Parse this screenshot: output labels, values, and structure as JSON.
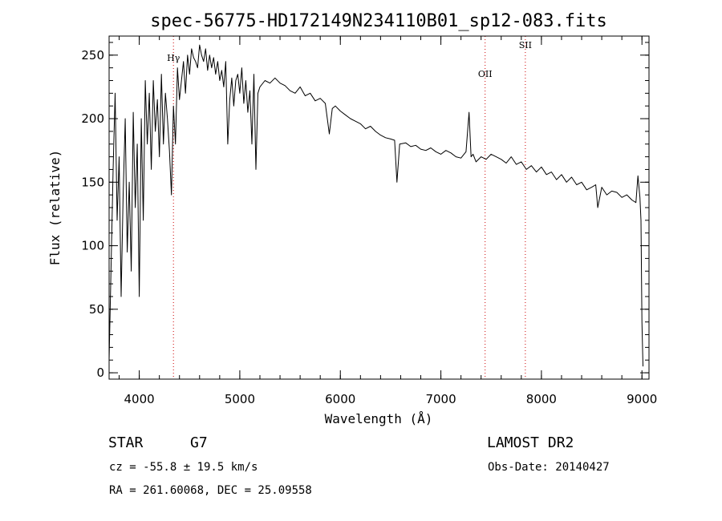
{
  "chart_data": {
    "type": "line",
    "title": "spec-56775-HD172149N234110B01_sp12-083.fits",
    "xlabel": "Wavelength (Å)",
    "ylabel": "Flux (relative)",
    "xlim": [
      3700,
      9070
    ],
    "ylim": [
      -5,
      265
    ],
    "xticks": [
      4000,
      5000,
      6000,
      7000,
      8000,
      9000
    ],
    "yticks": [
      0,
      50,
      100,
      150,
      200,
      250
    ],
    "x_minor_step": 200,
    "y_minor_step": 10,
    "line_color": "#000000",
    "marker_color": "#cc0000",
    "series": [
      {
        "x": [
          3700,
          3720,
          3740,
          3760,
          3780,
          3800,
          3820,
          3840,
          3860,
          3880,
          3900,
          3920,
          3940,
          3960,
          3980,
          4000,
          4020,
          4040,
          4060,
          4080,
          4100,
          4120,
          4140,
          4160,
          4180,
          4200,
          4220,
          4240,
          4260,
          4280,
          4300,
          4320,
          4340,
          4360,
          4380,
          4400,
          4420,
          4440,
          4460,
          4480,
          4500,
          4520,
          4540,
          4560,
          4580,
          4600,
          4620,
          4640,
          4660,
          4680,
          4700,
          4720,
          4740,
          4760,
          4780,
          4800,
          4820,
          4840,
          4860,
          4880,
          4900,
          4920,
          4940,
          4960,
          4980,
          5000,
          5020,
          5040,
          5060,
          5080,
          5100,
          5120,
          5140,
          5160,
          5180,
          5200,
          5250,
          5300,
          5350,
          5400,
          5450,
          5500,
          5550,
          5600,
          5650,
          5700,
          5750,
          5800,
          5850,
          5890,
          5920,
          5950,
          6000,
          6050,
          6100,
          6150,
          6200,
          6250,
          6300,
          6350,
          6400,
          6450,
          6500,
          6540,
          6563,
          6590,
          6650,
          6700,
          6750,
          6800,
          6850,
          6900,
          6950,
          7000,
          7050,
          7100,
          7150,
          7200,
          7250,
          7280,
          7300,
          7320,
          7350,
          7400,
          7450,
          7500,
          7550,
          7600,
          7650,
          7700,
          7750,
          7800,
          7850,
          7900,
          7950,
          8000,
          8050,
          8100,
          8150,
          8200,
          8250,
          8300,
          8350,
          8400,
          8450,
          8500,
          8540,
          8560,
          8600,
          8650,
          8700,
          8750,
          8800,
          8850,
          8900,
          8940,
          8960,
          8980,
          8990,
          9000,
          9010
        ],
        "y": [
          10,
          85,
          160,
          220,
          120,
          170,
          60,
          140,
          200,
          95,
          150,
          80,
          205,
          130,
          180,
          60,
          200,
          120,
          230,
          180,
          220,
          160,
          230,
          190,
          215,
          170,
          235,
          180,
          220,
          200,
          175,
          140,
          210,
          180,
          240,
          215,
          230,
          245,
          220,
          250,
          235,
          255,
          248,
          245,
          240,
          258,
          250,
          245,
          255,
          238,
          250,
          240,
          248,
          235,
          245,
          230,
          238,
          225,
          245,
          180,
          215,
          232,
          210,
          230,
          235,
          220,
          240,
          212,
          230,
          205,
          222,
          180,
          235,
          160,
          220,
          225,
          230,
          228,
          232,
          228,
          226,
          222,
          220,
          225,
          218,
          220,
          214,
          216,
          212,
          188,
          208,
          210,
          206,
          203,
          200,
          198,
          196,
          192,
          194,
          190,
          187,
          185,
          184,
          183,
          150,
          180,
          181,
          178,
          179,
          176,
          175,
          177,
          174,
          172,
          175,
          173,
          170,
          169,
          174,
          205,
          170,
          172,
          166,
          170,
          168,
          172,
          170,
          168,
          165,
          170,
          164,
          166,
          160,
          163,
          158,
          162,
          156,
          158,
          152,
          156,
          150,
          154,
          148,
          150,
          144,
          146,
          148,
          130,
          146,
          140,
          143,
          142,
          138,
          140,
          136,
          134,
          155,
          138,
          120,
          40,
          5
        ]
      }
    ],
    "line_markers": [
      {
        "label": "Hγ",
        "x": 4340
      },
      {
        "label": "OII",
        "x": 7440
      },
      {
        "label": "SII",
        "x": 7840
      }
    ]
  },
  "info": {
    "class_label": "STAR",
    "subclass": "G7",
    "survey": "LAMOST DR2",
    "redshift": "cz = -55.8 ± 19.5 km/s",
    "obs_date": "Obs-Date: 20140427",
    "coords": "RA = 261.60068, DEC =  25.09558"
  }
}
